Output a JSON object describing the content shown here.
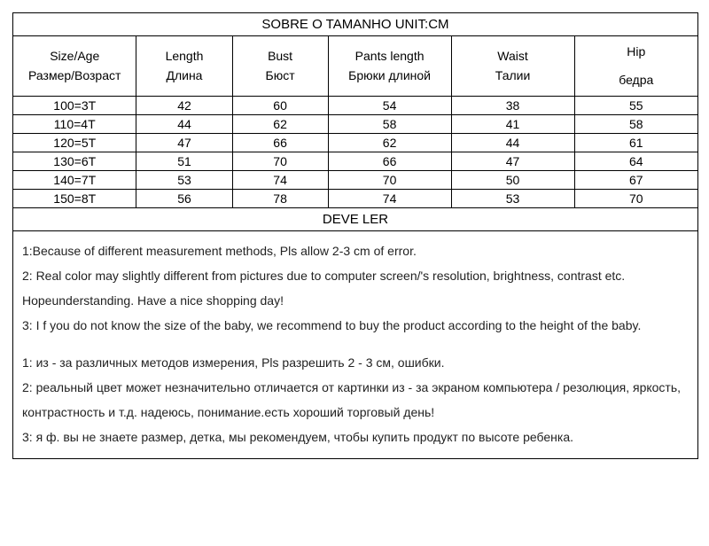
{
  "title": "SOBRE O TAMANHO UNIT:CM",
  "columns": [
    {
      "en": "Size/Age",
      "ru": "Размер/Возраст"
    },
    {
      "en": "Length",
      "ru": "Длина"
    },
    {
      "en": "Bust",
      "ru": "Бюст"
    },
    {
      "en": "Pants length",
      "ru": "Брюки длиной"
    },
    {
      "en": "Waist",
      "ru": "Талии"
    },
    {
      "en": "Hip",
      "ru": "бедра"
    }
  ],
  "col_widths_pct": [
    18,
    14,
    14,
    18,
    18,
    18
  ],
  "rows": [
    [
      "100=3T",
      "42",
      "60",
      "54",
      "38",
      "55"
    ],
    [
      "110=4T",
      "44",
      "62",
      "58",
      "41",
      "58"
    ],
    [
      "120=5T",
      "47",
      "66",
      "62",
      "44",
      "61"
    ],
    [
      "130=6T",
      "51",
      "70",
      "66",
      "47",
      "64"
    ],
    [
      "140=7T",
      "53",
      "74",
      "70",
      "50",
      "67"
    ],
    [
      "150=8T",
      "56",
      "78",
      "74",
      "53",
      "70"
    ]
  ],
  "notes_title": "DEVE LER",
  "notes_en": [
    "1:Because of different measurement methods, Pls allow 2-3 cm of error.",
    "2: Real color may slightly different from pictures due to computer screen/'s resolution, brightness, contrast etc.  Hopeunderstanding. Have a nice shopping day!",
    "3: I f you do not know the size of the baby, we recommend to buy the product according to the height of the baby."
  ],
  "notes_ru": [
    "1: из - за различных методов измерения, Pls разрешить 2 - 3 см, ошибки.",
    "2: реальный цвет может незначительно отличается от картинки из - за экраном компьютера / резолюция, яркость, контрастность и т.д. надеюсь, понимание.есть хороший торговый день!",
    "3: я ф. вы не знаете размер, детка, мы рекомендуем, чтобы купить продукт по высоте ребенка."
  ],
  "border_color": "#000000",
  "background_color": "#ffffff",
  "font_size_pt": 14
}
